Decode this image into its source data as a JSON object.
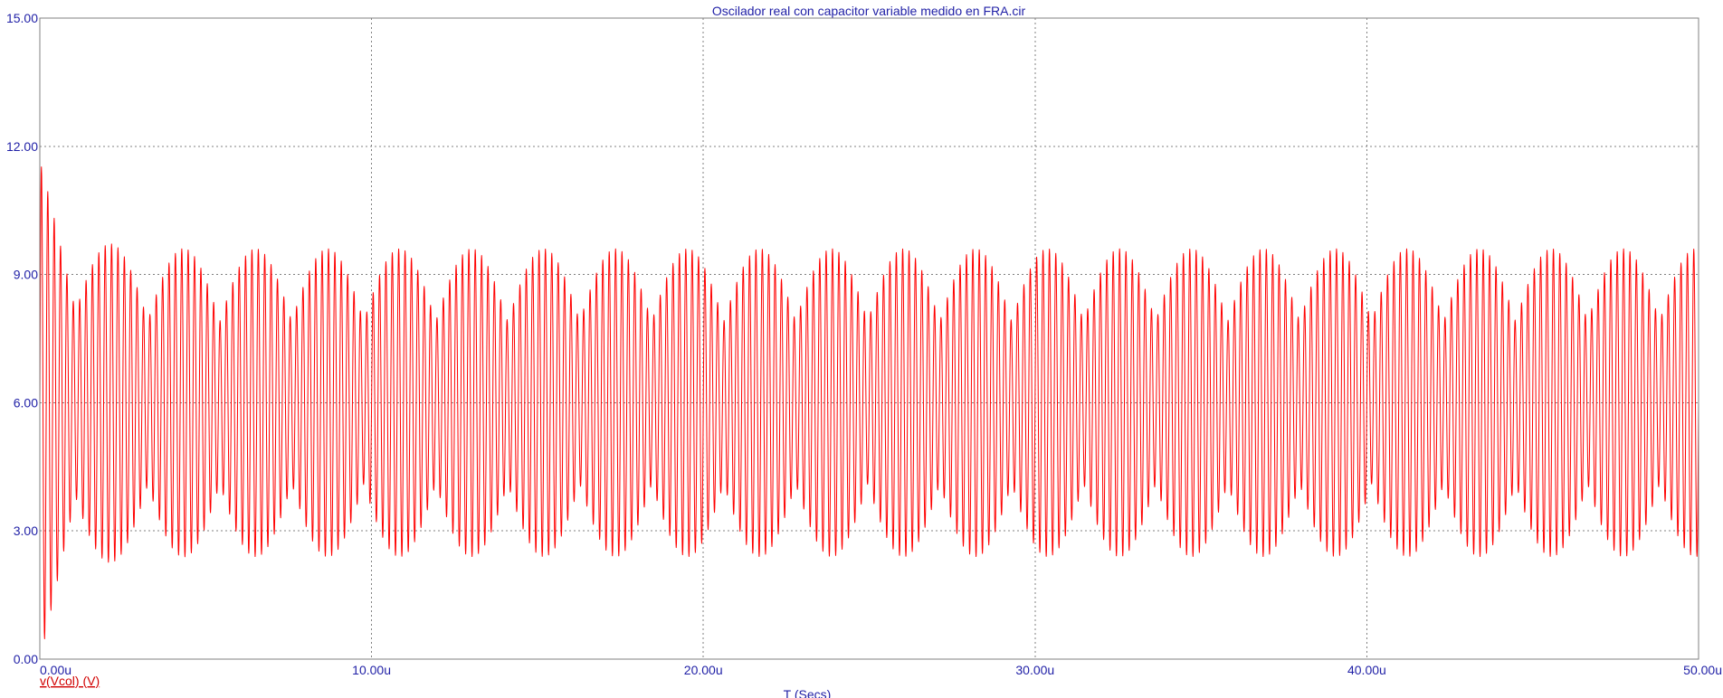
{
  "chart_data": {
    "type": "line",
    "title": "Oscilador real con capacitor variable medido en FRA.cir",
    "xlabel": "T (Secs)",
    "ylabel": "",
    "x_unit": "s",
    "xlim": [
      0,
      5e-05
    ],
    "ylim": [
      0,
      15
    ],
    "x_tick_values": [
      0,
      1e-05,
      2e-05,
      3e-05,
      4e-05,
      5e-05
    ],
    "x_tick_labels": [
      "0.00u",
      "10.00u",
      "20.00u",
      "30.00u",
      "40.00u",
      "50.00u"
    ],
    "y_tick_values": [
      0,
      3,
      6,
      9,
      12,
      15
    ],
    "y_tick_labels": [
      "0.00",
      "3.00",
      "6.00",
      "9.00",
      "12.00",
      "15.00"
    ],
    "grid": true,
    "legend_position": "bottom-left",
    "series": [
      {
        "name": "v(Vcol) (V)",
        "color": "#ff0000",
        "waveform": {
          "model": "amplitude-modulated oscillation with decaying start-up transient",
          "dc_level_V": 6.0,
          "steady_state_upper_envelope_V": 9.6,
          "steady_state_lower_envelope_V": 2.4,
          "initial_peak_V": 11.65,
          "initial_trough_V": 0.0,
          "envelope_settling_time_s": 3e-06,
          "carrier_cycles_over_window": 260,
          "beat_lobe_period_s": 2.17e-06,
          "beat_node_peak_V": 7.9,
          "beat_node_trough_V": 4.1
        }
      }
    ],
    "colors": {
      "text": "#1f1fa6",
      "frame": "#808080",
      "grid": "#808080",
      "background": "#ffffff"
    }
  }
}
